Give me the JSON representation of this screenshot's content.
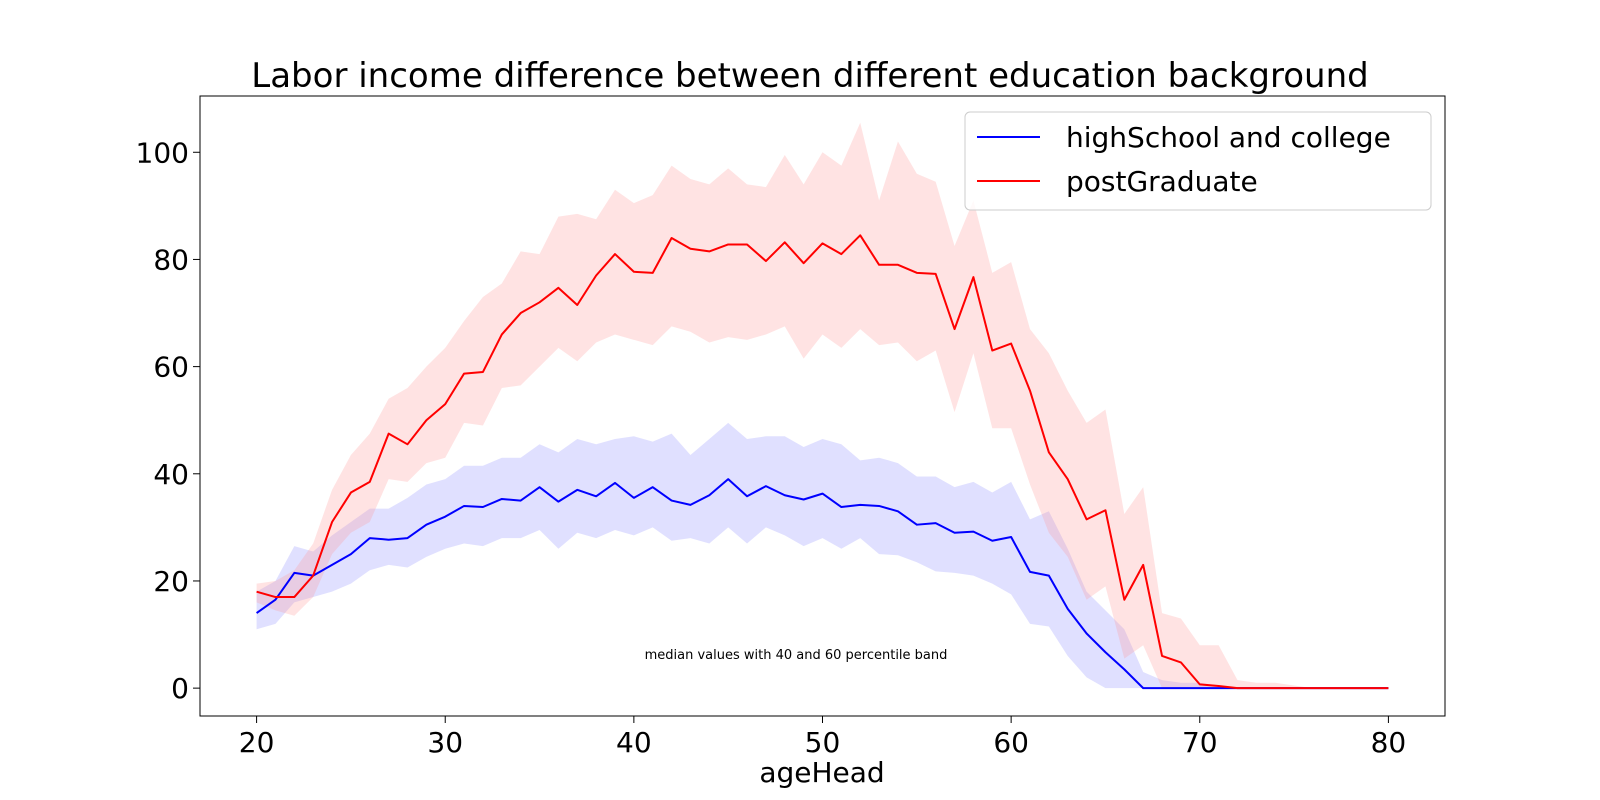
{
  "chart_data": {
    "type": "line",
    "title": "Labor income difference between different education background",
    "xlabel": "ageHead",
    "ylabel": "",
    "xlim": [
      17,
      83
    ],
    "ylim": [
      -5.2,
      110.5
    ],
    "xticks": [
      20,
      30,
      40,
      50,
      60,
      70,
      80
    ],
    "yticks": [
      0,
      20,
      40,
      60,
      80,
      100
    ],
    "grid": false,
    "legend_position": "top-right",
    "annotation": "median values with 40 and 60 percentile band",
    "x": [
      20,
      21,
      22,
      23,
      24,
      25,
      26,
      27,
      28,
      29,
      30,
      31,
      32,
      33,
      34,
      35,
      36,
      37,
      38,
      39,
      40,
      41,
      42,
      43,
      44,
      45,
      46,
      47,
      48,
      49,
      50,
      51,
      52,
      53,
      54,
      55,
      56,
      57,
      58,
      59,
      60,
      61,
      62,
      63,
      64,
      65,
      66,
      67,
      68,
      69,
      70,
      71,
      72,
      73,
      74,
      75,
      76,
      77,
      78,
      79,
      80
    ],
    "series": [
      {
        "name": "highSchool and college",
        "color": "#0000ff",
        "band_color": "#0000ff",
        "values": [
          14,
          16.5,
          21.5,
          21,
          23,
          25,
          28,
          27.7,
          28,
          30.5,
          32,
          34,
          33.8,
          35.3,
          35,
          37.5,
          34.8,
          37,
          35.8,
          38.3,
          35.5,
          37.5,
          35,
          34.2,
          36,
          39,
          35.8,
          37.7,
          36,
          35.2,
          36.3,
          33.8,
          34.2,
          34,
          33,
          30.5,
          30.8,
          29,
          29.2,
          27.5,
          28.2,
          21.7,
          21,
          14.8,
          10.2,
          6.7,
          3.5,
          0,
          0,
          0,
          0,
          0,
          0,
          0,
          0,
          0,
          0,
          0,
          0,
          0,
          0
        ],
        "lower": [
          11,
          12,
          16,
          17,
          18,
          19.5,
          22,
          23,
          22.5,
          24.5,
          26,
          27,
          26.5,
          28,
          28,
          29.5,
          26,
          29,
          28,
          29.5,
          28.5,
          30,
          27.5,
          28,
          27,
          30,
          27,
          30,
          28.5,
          26.5,
          28,
          26,
          28,
          25,
          24.8,
          23.5,
          21.8,
          21.5,
          21,
          19.5,
          17.5,
          12,
          11.5,
          6,
          2,
          0,
          0,
          0,
          0,
          0,
          0,
          0,
          0,
          0,
          0,
          0,
          0,
          0,
          0,
          0,
          0
        ],
        "upper": [
          18,
          20,
          26.5,
          25.5,
          28.5,
          31,
          33.5,
          33.5,
          35.5,
          38,
          39,
          41.5,
          41.5,
          43,
          43,
          45.5,
          44,
          46.5,
          45.5,
          46.5,
          47,
          46,
          47.5,
          43.5,
          46.5,
          49.5,
          46.5,
          47,
          47,
          45,
          46.5,
          45.5,
          42.5,
          43,
          42,
          39.5,
          39.5,
          37.5,
          38.5,
          36.5,
          38.5,
          31.5,
          33,
          26,
          18,
          14.5,
          11,
          3,
          1.5,
          1,
          1,
          0.5,
          0,
          0,
          0,
          0,
          0,
          0,
          0,
          0,
          0
        ]
      },
      {
        "name": "postGraduate",
        "color": "#ff0000",
        "band_color": "#ff9999",
        "values": [
          18,
          17,
          17,
          21,
          31,
          36.5,
          38.5,
          47.5,
          45.5,
          50,
          53,
          58.7,
          59,
          66,
          70,
          72,
          74.7,
          71.5,
          77,
          81,
          77.7,
          77.5,
          84,
          82,
          81.5,
          82.8,
          82.8,
          79.7,
          83.2,
          79.3,
          83,
          81,
          84.5,
          79,
          79,
          77.5,
          77.3,
          67,
          76.7,
          63,
          64.3,
          55.5,
          44,
          39,
          31.5,
          33.2,
          16.5,
          23,
          6,
          4.8,
          0.7,
          0.4,
          0,
          0,
          0,
          0,
          0,
          0,
          0,
          0,
          0
        ],
        "lower": [
          16,
          14.5,
          13.5,
          17,
          25,
          29,
          31,
          39,
          38.5,
          42,
          43,
          49.5,
          49,
          56,
          56.5,
          60,
          63.5,
          61,
          64.5,
          66,
          65,
          64,
          67.5,
          66.5,
          64.5,
          65.5,
          65,
          66,
          67.5,
          61.5,
          66,
          63.5,
          67,
          64,
          64.5,
          61,
          63,
          51.5,
          62.5,
          48.5,
          48.5,
          38,
          29,
          24.5,
          16.5,
          19,
          5.5,
          8,
          0,
          0,
          0,
          0,
          0,
          0,
          0,
          0,
          0,
          0,
          0,
          0,
          0
        ],
        "upper": [
          19.5,
          20,
          22,
          27,
          37,
          43.5,
          47.5,
          54,
          56,
          60,
          63.5,
          68.5,
          73,
          75.5,
          81.5,
          81,
          88,
          88.5,
          87.5,
          93,
          90.5,
          92,
          97.5,
          95,
          94,
          97,
          94,
          93.5,
          99.5,
          94,
          100,
          97.5,
          105.5,
          91,
          102,
          96,
          94.5,
          82.5,
          91,
          77.5,
          79.5,
          67,
          62.5,
          55.5,
          49.5,
          52,
          32.5,
          37.5,
          14,
          13,
          8,
          8,
          1.5,
          1,
          1,
          0.5,
          0,
          0,
          0,
          0,
          0
        ]
      }
    ]
  }
}
